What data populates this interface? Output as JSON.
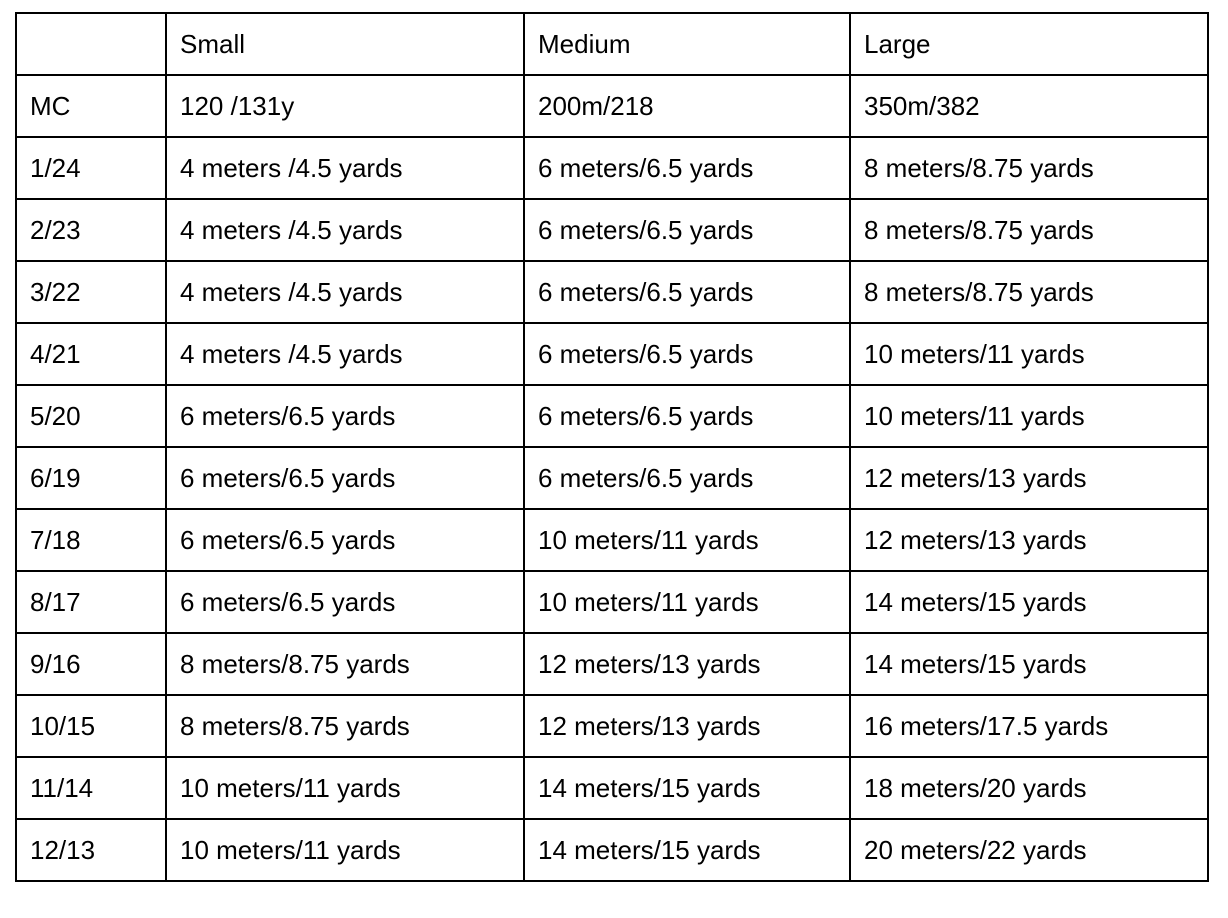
{
  "table": {
    "columns": [
      "Small",
      "Medium",
      "Large"
    ],
    "rows": [
      [
        "MC",
        "120 /131y",
        "200m/218",
        "350m/382"
      ],
      [
        "1/24",
        "4 meters /4.5 yards",
        "6 meters/6.5 yards",
        "8 meters/8.75 yards"
      ],
      [
        "2/23",
        "4 meters /4.5 yards",
        "6 meters/6.5 yards",
        "8 meters/8.75 yards"
      ],
      [
        "3/22",
        "4 meters /4.5 yards",
        "6 meters/6.5 yards",
        "8 meters/8.75 yards"
      ],
      [
        "4/21",
        "4 meters /4.5 yards",
        "6 meters/6.5 yards",
        "10 meters/11 yards"
      ],
      [
        "5/20",
        "6 meters/6.5 yards",
        "6 meters/6.5 yards",
        "10 meters/11 yards"
      ],
      [
        "6/19",
        "6 meters/6.5 yards",
        "6 meters/6.5 yards",
        "12 meters/13 yards"
      ],
      [
        "7/18",
        "6 meters/6.5 yards",
        "10 meters/11 yards",
        "12 meters/13 yards"
      ],
      [
        "8/17",
        "6 meters/6.5 yards",
        "10 meters/11 yards",
        "14 meters/15 yards"
      ],
      [
        "9/16",
        "8 meters/8.75 yards",
        "12 meters/13 yards",
        "14 meters/15 yards"
      ],
      [
        "10/15",
        "8 meters/8.75 yards",
        "12 meters/13 yards",
        "16 meters/17.5 yards"
      ],
      [
        "11/14",
        "10 meters/11 yards",
        "14 meters/15 yards",
        "18 meters/20 yards"
      ],
      [
        "12/13",
        "10 meters/11 yards",
        "14 meters/15 yards",
        "20 meters/22 yards"
      ]
    ]
  }
}
